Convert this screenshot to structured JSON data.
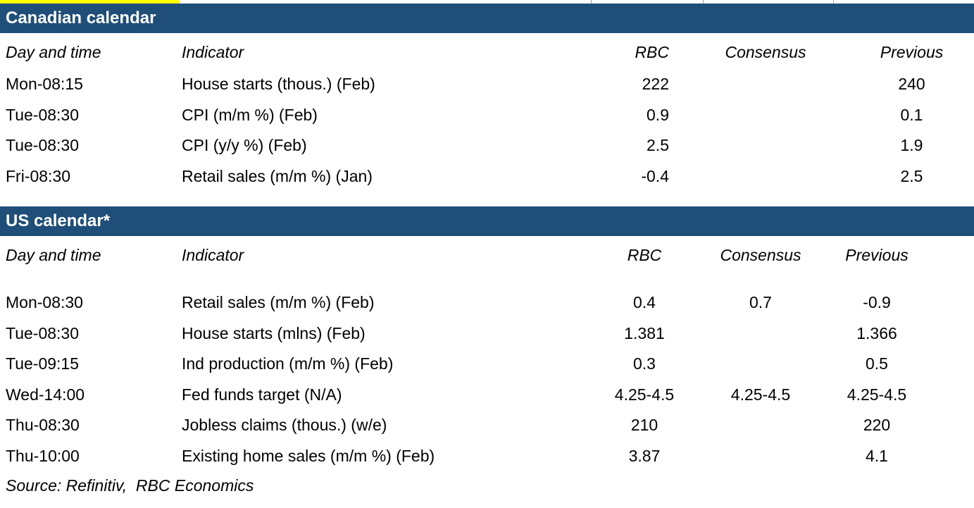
{
  "colors": {
    "band_blue": "#1F4E79",
    "highlight_yellow": "#FFFF00",
    "text_black": "#000000",
    "band_text_white": "#FFFFFF",
    "artifact_gridline_gray": "#A6A6A6"
  },
  "source_note": "Source: Refinitiv,  RBC Economics",
  "tables": [
    {
      "title": "Canadian calendar",
      "columns": [
        "Day and time",
        "Indicator",
        "RBC",
        "Consensus",
        "Previous"
      ],
      "rows": [
        {
          "day_time": "Mon-08:15",
          "indicator": "House starts (thous.) (Feb)",
          "rbc": "222",
          "consensus": "",
          "previous": "240"
        },
        {
          "day_time": "Tue-08:30",
          "indicator": "CPI (m/m %) (Feb)",
          "rbc": "0.9",
          "consensus": "",
          "previous": "0.1"
        },
        {
          "day_time": "Tue-08:30",
          "indicator": "CPI (y/y %) (Feb)",
          "rbc": "2.5",
          "consensus": "",
          "previous": "1.9"
        },
        {
          "day_time": "Fri-08:30",
          "indicator": "Retail sales (m/m %) (Jan)",
          "rbc": "-0.4",
          "consensus": "",
          "previous": "2.5"
        }
      ]
    },
    {
      "title": "US calendar*",
      "columns": [
        "Day and time",
        "Indicator",
        "RBC",
        "Consensus",
        "Previous"
      ],
      "rows": [
        {
          "day_time": "Mon-08:30",
          "indicator": "Retail sales (m/m %) (Feb)",
          "rbc": "0.4",
          "consensus": "0.7",
          "previous": "-0.9"
        },
        {
          "day_time": "Tue-08:30",
          "indicator": "House starts (mlns) (Feb)",
          "rbc": "1.381",
          "consensus": "",
          "previous": "1.366"
        },
        {
          "day_time": "Tue-09:15",
          "indicator": "Ind production (m/m %) (Feb)",
          "rbc": "0.3",
          "consensus": "",
          "previous": "0.5"
        },
        {
          "day_time": "Wed-14:00",
          "indicator": "Fed funds target (N/A)",
          "rbc": "4.25-4.5",
          "consensus": "4.25-4.5",
          "previous": "4.25-4.5"
        },
        {
          "day_time": "Thu-08:30",
          "indicator": "Jobless claims (thous.) (w/e)",
          "rbc": "210",
          "consensus": "",
          "previous": "220"
        },
        {
          "day_time": "Thu-10:00",
          "indicator": "Existing home sales (m/m %) (Feb)",
          "rbc": "3.87",
          "consensus": "",
          "previous": "4.1"
        }
      ]
    }
  ]
}
